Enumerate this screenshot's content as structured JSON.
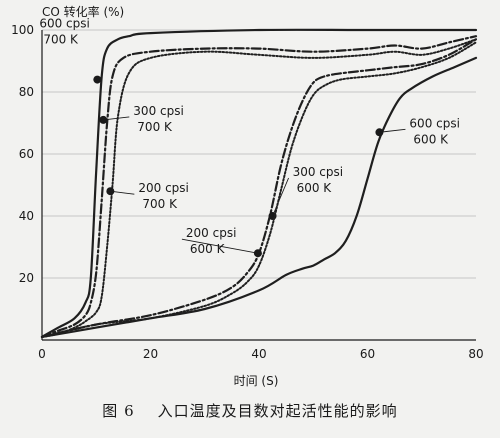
{
  "chart_data": {
    "type": "line",
    "ylabel": "CO 转化率 (%)",
    "xlabel": "时间 (S)",
    "caption": "图 6    入口温度及目数对起活性能的影响",
    "xlim": [
      0,
      80
    ],
    "ylim": [
      0,
      100
    ],
    "xticks": [
      0,
      20,
      40,
      60,
      80
    ],
    "yticks": [
      20,
      40,
      60,
      80,
      100
    ],
    "series": [
      {
        "name": "600 cpsi 700 K",
        "style": "solid",
        "x": [
          0,
          3,
          6,
          8,
          9,
          10,
          11,
          12,
          14,
          16,
          20,
          40,
          60,
          80
        ],
        "y": [
          1,
          4,
          7,
          12,
          20,
          55,
          85,
          94,
          97,
          98,
          99,
          100,
          100,
          100
        ],
        "marker": {
          "x": 10.2,
          "y": 84
        },
        "labels": [
          "600 cpsi",
          "700 K"
        ]
      },
      {
        "name": "300 cpsi 700 K",
        "style": "dashdot",
        "x": [
          0,
          3,
          6,
          8,
          9,
          10,
          11,
          12,
          13,
          15,
          20,
          30,
          40,
          50,
          60,
          65,
          70,
          75,
          80
        ],
        "y": [
          1,
          3,
          5,
          8,
          12,
          22,
          45,
          70,
          85,
          91,
          93,
          94,
          94,
          93,
          94,
          95,
          94,
          96,
          98
        ],
        "marker": {
          "x": 11.3,
          "y": 71
        },
        "labels": [
          "300 cpsi",
          "700 K"
        ]
      },
      {
        "name": "200 cpsi 700 K",
        "style": "dotted",
        "x": [
          0,
          3,
          6,
          8,
          10,
          11,
          12,
          13,
          14,
          16,
          20,
          30,
          40,
          50,
          60,
          65,
          70,
          75,
          80
        ],
        "y": [
          1,
          2,
          4,
          6,
          9,
          14,
          30,
          50,
          72,
          86,
          91,
          93,
          92,
          91,
          92,
          93,
          92,
          94,
          97
        ],
        "marker": {
          "x": 12.6,
          "y": 48
        },
        "labels": [
          "200 cpsi",
          "700 K"
        ]
      },
      {
        "name": "300 cpsi 600 K",
        "style": "dashdot",
        "x": [
          0,
          10,
          20,
          30,
          35,
          38,
          40,
          42,
          44,
          46,
          48,
          50,
          52,
          55,
          60,
          65,
          70,
          75,
          80
        ],
        "y": [
          1,
          5,
          8,
          13,
          17,
          22,
          28,
          40,
          56,
          68,
          77,
          83,
          85,
          86,
          87,
          88,
          89,
          92,
          97
        ],
        "marker": {
          "x": 42.5,
          "y": 40
        },
        "labels": [
          "300 cpsi",
          "600 K"
        ]
      },
      {
        "name": "200 cpsi 600 K",
        "style": "dotted",
        "x": [
          0,
          10,
          20,
          30,
          35,
          38,
          40,
          42,
          44,
          46,
          48,
          50,
          52,
          55,
          60,
          65,
          70,
          75,
          80
        ],
        "y": [
          1,
          5,
          7,
          11,
          15,
          19,
          24,
          34,
          48,
          62,
          72,
          79,
          82,
          84,
          85,
          86,
          88,
          91,
          96
        ],
        "marker": {
          "x": 39.8,
          "y": 28
        },
        "labels": [
          "200 cpsi",
          "600 K"
        ]
      },
      {
        "name": "600 cpsi 600 K",
        "style": "solid",
        "x": [
          0,
          10,
          20,
          30,
          40,
          45,
          48,
          50,
          52,
          54,
          56,
          58,
          60,
          62,
          64,
          66,
          68,
          72,
          76,
          80
        ],
        "y": [
          1,
          4,
          7,
          10,
          16,
          21,
          23,
          24,
          26,
          28,
          32,
          40,
          52,
          64,
          72,
          78,
          81,
          85,
          88,
          91
        ],
        "marker": {
          "x": 62.2,
          "y": 67
        },
        "labels": [
          "600 cpsi",
          "600 K"
        ]
      }
    ]
  }
}
